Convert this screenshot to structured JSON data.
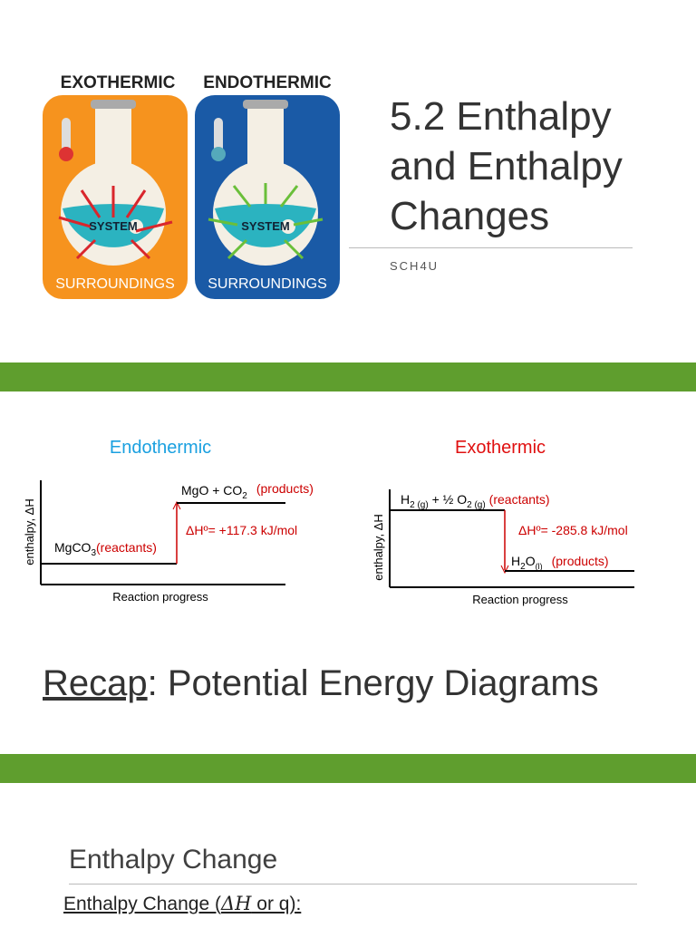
{
  "slides": [
    {
      "image_labels": {
        "left_title": "EXOTHERMIC",
        "right_title": "ENDOTHERMIC",
        "left_system": "SYSTEM",
        "right_system": "SYSTEM",
        "left_surroundings": "SURROUNDINGS",
        "right_surroundings": "SURROUNDINGS"
      },
      "title": "5.2 Enthalpy and Enthalpy Changes",
      "subtitle": "SCH4U"
    },
    {
      "diagrams": [
        {
          "heading": "Endothermic",
          "y_axis_label": "enthalpy, ΔH",
          "x_axis_label": "Reaction progress",
          "products": {
            "formula": "MgO + CO",
            "sub": "2",
            "label": "(products)"
          },
          "reactants": {
            "formula": "MgCO",
            "sub": "3",
            "label": "(reactants)"
          },
          "delta_h": "ΔHº= +117.3 kJ/mol"
        },
        {
          "heading": "Exothermic",
          "y_axis_label": "enthalpy, ΔH",
          "x_axis_label": "Reaction progress",
          "reactants": {
            "part1": "H",
            "sub1": "2 (g)",
            "part2": " + ½ O",
            "sub2": "2 (g)",
            "label": "(reactants)"
          },
          "products": {
            "part1": "H",
            "sub1": "2",
            "part2": "O",
            "sub2": "(l)",
            "label": "(products)"
          },
          "delta_h": "ΔHº= -285.8 kJ/mol"
        }
      ],
      "title": {
        "underlined": "Recap",
        "rest": ": Potential Energy Diagrams"
      }
    },
    {
      "heading": "Enthalpy Change",
      "definition_prefix": "Enthalpy Change (",
      "symbol": "ΔH",
      "definition_suffix": " or q):"
    }
  ]
}
